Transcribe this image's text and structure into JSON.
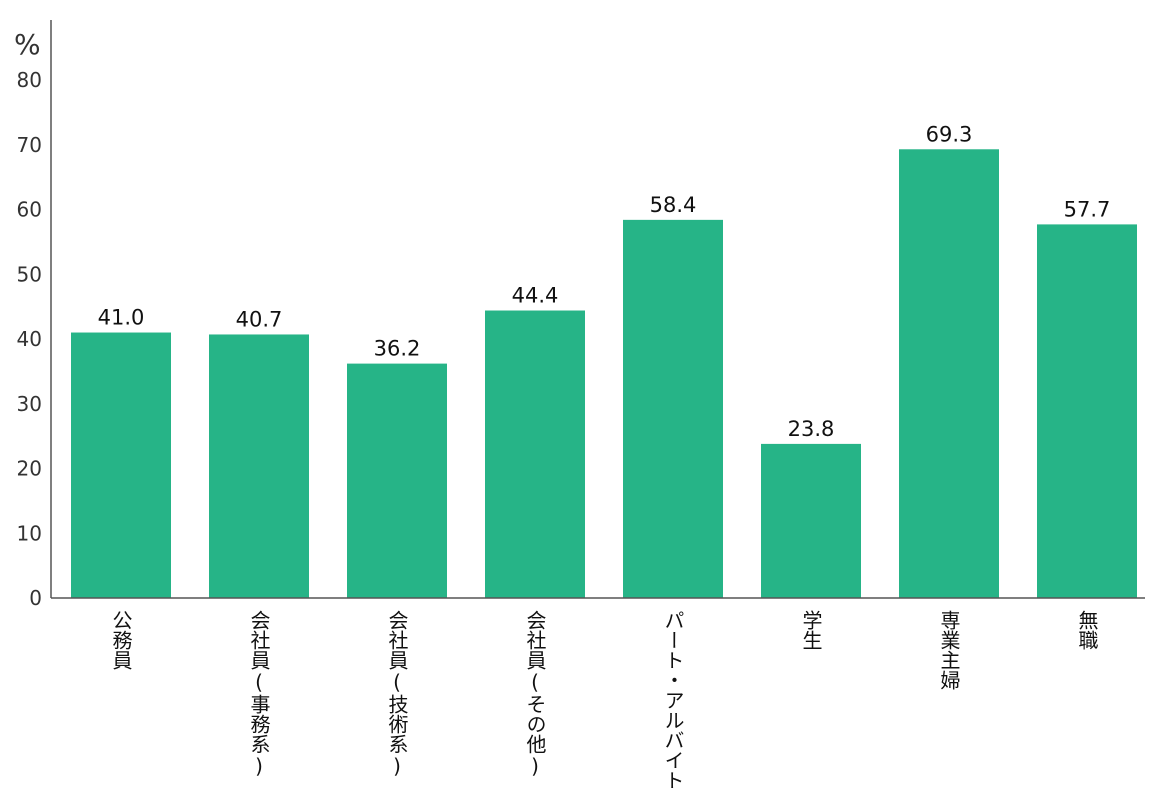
{
  "chart_data": {
    "type": "bar",
    "ylabel": "%",
    "ylim": [
      0,
      80
    ],
    "yticks": [
      0,
      10,
      20,
      30,
      40,
      50,
      60,
      70,
      80
    ],
    "categories": [
      "公務員",
      "会社員(事務系)",
      "会社員(技術系)",
      "会社員(その他)",
      "パート・アルバイト",
      "学生",
      "専業主婦",
      "無職"
    ],
    "values": [
      41.0,
      40.7,
      36.2,
      44.4,
      58.4,
      23.8,
      69.3,
      57.7
    ],
    "value_labels": [
      "41.0",
      "40.7",
      "36.2",
      "44.4",
      "58.4",
      "23.8",
      "69.3",
      "57.7"
    ],
    "grid": false,
    "bar_color": "#26b487",
    "axis_color": "#555555"
  }
}
